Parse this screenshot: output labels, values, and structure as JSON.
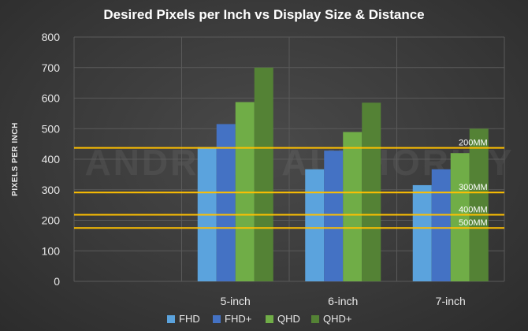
{
  "chart_data": {
    "type": "bar",
    "title": "Desired Pixels per Inch vs Display Size & Distance",
    "ylabel": "PIXELS PER INCH",
    "xlabel": "",
    "ylim": [
      0,
      800
    ],
    "yticks": [
      0,
      100,
      200,
      300,
      400,
      500,
      600,
      700,
      800
    ],
    "grid": true,
    "legend_position": "bottom",
    "categories": [
      "5-inch",
      "6-inch",
      "7-inch"
    ],
    "series": [
      {
        "name": "FHD",
        "values": [
          440,
          367,
          315
        ],
        "color": "#5ba3dd"
      },
      {
        "name": "FHD+",
        "values": [
          515,
          428,
          367
        ],
        "color": "#4472c4"
      },
      {
        "name": "QHD",
        "values": [
          587,
          489,
          420
        ],
        "color": "#70ad47"
      },
      {
        "name": "QHD+",
        "values": [
          700,
          585,
          500
        ],
        "color": "#548235"
      }
    ],
    "reference_lines": [
      {
        "label": "200MM",
        "value": 437
      },
      {
        "label": "300MM",
        "value": 291
      },
      {
        "label": "400MM",
        "value": 218
      },
      {
        "label": "500MM",
        "value": 175
      }
    ],
    "reference_line_color": "#ffc000",
    "watermark": "ANDROID AUTHORITY"
  }
}
